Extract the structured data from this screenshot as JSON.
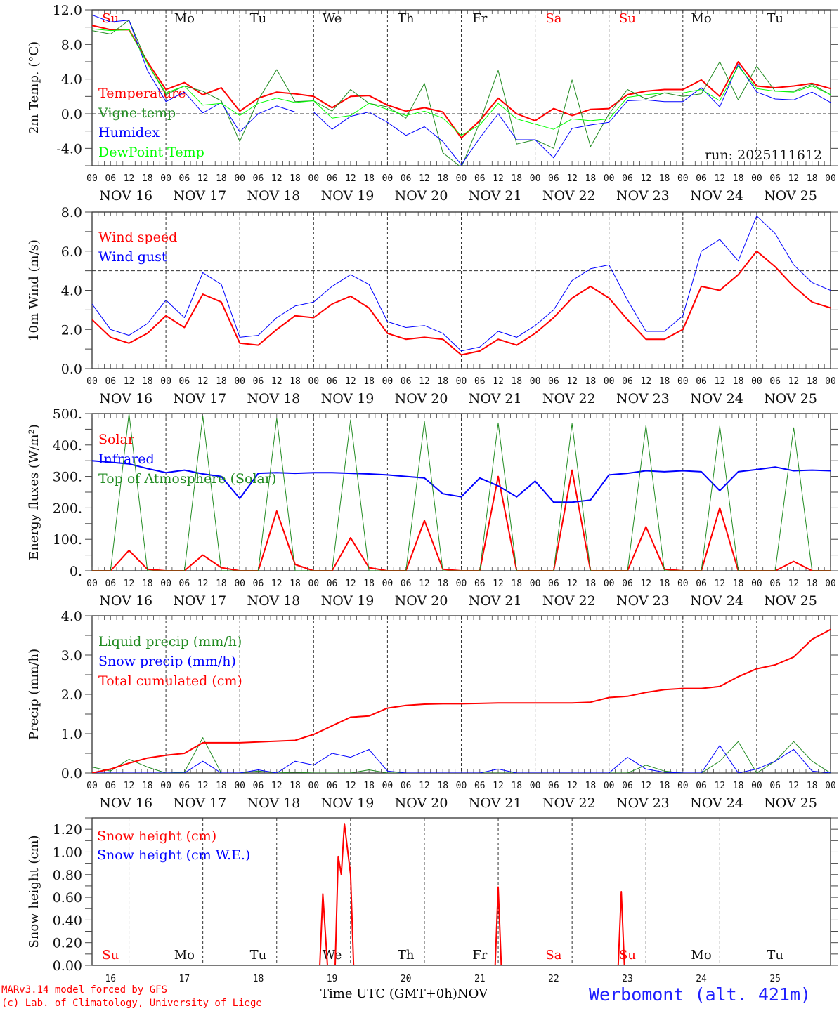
{
  "location": "Werbomont (alt. 421m)",
  "credits": [
    "MARv3.14 model forced by GFS",
    "(c) Lab. of Climatology, University of Liege"
  ],
  "xaxis_title": "Time UTC (GMT+0h)",
  "xaxis_month": "NOV",
  "colors": {
    "red": "#ff0000",
    "darkgreen": "#228b22",
    "blue": "#0000ff",
    "lime": "#00ff00",
    "title_blue": "#2020ff",
    "weekend": "#ff0000"
  },
  "days": [
    {
      "dow": "Su",
      "date": "NOV 16",
      "num": "16",
      "weekend": true
    },
    {
      "dow": "Mo",
      "date": "NOV 17",
      "num": "17",
      "weekend": false
    },
    {
      "dow": "Tu",
      "date": "NOV 18",
      "num": "18",
      "weekend": false
    },
    {
      "dow": "We",
      "date": "NOV 19",
      "num": "19",
      "weekend": false
    },
    {
      "dow": "Th",
      "date": "NOV 20",
      "num": "20",
      "weekend": false
    },
    {
      "dow": "Fr",
      "date": "NOV 21",
      "num": "21",
      "weekend": false
    },
    {
      "dow": "Sa",
      "date": "NOV 22",
      "num": "22",
      "weekend": true
    },
    {
      "dow": "Su",
      "date": "NOV 23",
      "num": "23",
      "weekend": true
    },
    {
      "dow": "Mo",
      "date": "NOV 24",
      "num": "24",
      "weekend": false
    },
    {
      "dow": "Tu",
      "date": "NOV 25",
      "num": "25",
      "weekend": false
    }
  ],
  "hour_ticks": [
    "00",
    "06",
    "12",
    "18"
  ],
  "end_tick": "00",
  "chart_data": [
    {
      "type": "line",
      "id": "temp",
      "ylabel": "2m Temp. (°C)",
      "ylim": [
        -6,
        12
      ],
      "yticks": [
        {
          "v": 12,
          "l": "12.0"
        },
        {
          "v": 8,
          "l": "8.0"
        },
        {
          "v": 4,
          "l": "4.0"
        },
        {
          "v": 0,
          "l": "0.0"
        },
        {
          "v": -4,
          "l": "-4.0"
        }
      ],
      "ref_line": 0,
      "annotation": "run: 2025111612",
      "x_hours_step": 6,
      "series": [
        {
          "name": "Temperature",
          "color": "red",
          "width": 2,
          "values": [
            10.2,
            9.7,
            9.7,
            6.0,
            2.8,
            3.6,
            2.2,
            3.0,
            0.3,
            1.8,
            2.5,
            2.3,
            2.0,
            0.7,
            2.0,
            2.1,
            1.0,
            0.3,
            0.7,
            0.2,
            -2.8,
            -0.8,
            1.8,
            0.0,
            -0.8,
            0.6,
            -0.2,
            0.5,
            0.6,
            2.2,
            2.6,
            2.8,
            2.8,
            3.9,
            2.0,
            6.0,
            3.2,
            3.0,
            3.2,
            3.5,
            2.9
          ]
        },
        {
          "name": "Vigne temp",
          "color": "darkgreen",
          "width": 1,
          "values": [
            9.6,
            9.2,
            10.8,
            5.8,
            2.2,
            3.2,
            2.6,
            1.5,
            -3.2,
            1.6,
            5.1,
            1.4,
            1.5,
            0.3,
            2.8,
            1.2,
            0.8,
            -0.5,
            3.5,
            -4.5,
            -6.2,
            -1.0,
            5.0,
            -3.5,
            -3.0,
            -4.0,
            3.9,
            -3.8,
            0.0,
            2.8,
            1.7,
            2.4,
            2.0,
            2.3,
            6.0,
            1.6,
            5.5,
            2.6,
            2.6,
            3.4,
            2.2
          ]
        },
        {
          "name": "Humidex",
          "color": "blue",
          "width": 1,
          "values": [
            11.4,
            10.6,
            10.8,
            5.0,
            1.4,
            2.5,
            0.1,
            1.3,
            -2.1,
            0.0,
            0.9,
            0.2,
            0.2,
            -1.8,
            -0.3,
            0.2,
            -1.0,
            -2.5,
            -1.5,
            -3.2,
            -5.9,
            -2.8,
            0.0,
            -3.0,
            -3.0,
            -5.1,
            -1.7,
            -1.3,
            -1.0,
            1.5,
            1.6,
            1.4,
            1.4,
            3.0,
            0.8,
            5.7,
            2.5,
            1.7,
            1.6,
            2.5,
            1.3
          ]
        },
        {
          "name": "DewPoint Temp",
          "color": "lime",
          "width": 1,
          "values": [
            9.8,
            9.6,
            9.7,
            5.8,
            2.4,
            3.2,
            1.0,
            1.2,
            -0.2,
            1.2,
            1.8,
            1.3,
            1.5,
            -0.5,
            -0.2,
            1.2,
            0.5,
            -0.2,
            0.3,
            -0.5,
            -2.5,
            -1.3,
            1.2,
            -0.6,
            -1.2,
            -1.8,
            -0.6,
            -0.8,
            -0.6,
            1.9,
            2.2,
            2.4,
            2.4,
            2.8,
            1.5,
            5.5,
            2.9,
            2.6,
            2.5,
            3.2,
            2.2
          ]
        }
      ]
    },
    {
      "type": "line",
      "id": "wind",
      "ylabel": "10m Wind (m/s)",
      "ylim": [
        0,
        8
      ],
      "yticks": [
        {
          "v": 8,
          "l": "8.0"
        },
        {
          "v": 6,
          "l": "6.0"
        },
        {
          "v": 4,
          "l": "4.0"
        },
        {
          "v": 2,
          "l": "2.0"
        },
        {
          "v": 0,
          "l": "0.0"
        }
      ],
      "ref_line": 5,
      "x_hours_step": 6,
      "series": [
        {
          "name": "Wind speed",
          "color": "red",
          "width": 2,
          "values": [
            2.5,
            1.6,
            1.3,
            1.8,
            2.7,
            2.1,
            3.8,
            3.4,
            1.3,
            1.2,
            2.0,
            2.7,
            2.6,
            3.3,
            3.7,
            3.1,
            1.8,
            1.5,
            1.6,
            1.5,
            0.7,
            0.9,
            1.5,
            1.2,
            1.8,
            2.6,
            3.6,
            4.2,
            3.6,
            2.5,
            1.5,
            1.5,
            2.0,
            4.2,
            4.0,
            4.8,
            6.0,
            5.2,
            4.2,
            3.4,
            3.1
          ]
        },
        {
          "name": "Wind gust",
          "color": "blue",
          "width": 1,
          "values": [
            3.3,
            2.0,
            1.7,
            2.3,
            3.5,
            2.6,
            4.9,
            4.3,
            1.6,
            1.7,
            2.6,
            3.2,
            3.4,
            4.2,
            4.8,
            4.3,
            2.4,
            2.1,
            2.2,
            1.8,
            0.9,
            1.1,
            1.9,
            1.6,
            2.2,
            3.0,
            4.5,
            5.1,
            5.3,
            3.5,
            1.9,
            1.9,
            2.7,
            6.0,
            6.6,
            5.5,
            7.8,
            6.9,
            5.3,
            4.4,
            4.0
          ]
        }
      ]
    },
    {
      "type": "line",
      "id": "energy",
      "ylabel": "Energy fluxes (W/m²)",
      "ylim": [
        0,
        500
      ],
      "yticks": [
        {
          "v": 500,
          "l": "500."
        },
        {
          "v": 400,
          "l": "400."
        },
        {
          "v": 300,
          "l": "300."
        },
        {
          "v": 200,
          "l": "200."
        },
        {
          "v": 100,
          "l": "100."
        },
        {
          "v": 0,
          "l": "0."
        }
      ],
      "x_hours_step": 6,
      "series": [
        {
          "name": "Solar",
          "color": "red",
          "width": 2,
          "values": [
            0,
            0,
            65,
            5,
            0,
            0,
            50,
            10,
            0,
            0,
            190,
            20,
            0,
            0,
            105,
            10,
            0,
            0,
            160,
            5,
            0,
            0,
            300,
            0,
            0,
            0,
            320,
            0,
            0,
            0,
            140,
            5,
            0,
            0,
            200,
            0,
            0,
            0,
            30,
            0,
            0
          ]
        },
        {
          "name": "Infrared",
          "color": "blue",
          "width": 2,
          "values": [
            350,
            345,
            340,
            325,
            312,
            320,
            308,
            300,
            230,
            310,
            312,
            310,
            312,
            312,
            310,
            308,
            305,
            300,
            295,
            245,
            235,
            295,
            270,
            235,
            285,
            218,
            218,
            225,
            305,
            310,
            318,
            315,
            318,
            315,
            255,
            315,
            322,
            330,
            318,
            320,
            318
          ]
        },
        {
          "name": "Top of Atmosphere (Solar)",
          "color": "darkgreen",
          "width": 1,
          "values": [
            0,
            0,
            500,
            0,
            0,
            0,
            492,
            0,
            0,
            0,
            485,
            0,
            0,
            0,
            480,
            0,
            0,
            0,
            475,
            0,
            0,
            0,
            470,
            0,
            0,
            0,
            468,
            0,
            0,
            0,
            462,
            0,
            0,
            0,
            460,
            0,
            0,
            0,
            455,
            0,
            0
          ]
        }
      ]
    },
    {
      "type": "line",
      "id": "precip",
      "ylabel": "Precip (mm/h)",
      "ylim": [
        0,
        4
      ],
      "yticks": [
        {
          "v": 4,
          "l": "4.0"
        },
        {
          "v": 3,
          "l": "3.0"
        },
        {
          "v": 2,
          "l": "2.0"
        },
        {
          "v": 1,
          "l": "1.0"
        },
        {
          "v": 0,
          "l": "0.0"
        }
      ],
      "x_hours_step": 6,
      "series": [
        {
          "name": "Liquid precip (mm/h)",
          "color": "darkgreen",
          "width": 1,
          "values": [
            0.15,
            0.05,
            0.35,
            0.15,
            0.0,
            0.02,
            0.9,
            0.0,
            0.0,
            0.05,
            0.0,
            0.02,
            0.0,
            0.0,
            0.0,
            0.08,
            0.0,
            0.0,
            0.0,
            0.0,
            0.0,
            0.0,
            0.0,
            0.0,
            0.0,
            0.0,
            0.0,
            0.0,
            0.0,
            0.0,
            0.2,
            0.05,
            0.0,
            0.0,
            0.3,
            0.8,
            0.0,
            0.3,
            0.8,
            0.3,
            0.0
          ]
        },
        {
          "name": "Snow precip (mm/h)",
          "color": "blue",
          "width": 1,
          "values": [
            0.0,
            0.0,
            0.0,
            0.0,
            0.0,
            0.0,
            0.3,
            0.0,
            0.0,
            0.08,
            0.0,
            0.3,
            0.2,
            0.5,
            0.4,
            0.6,
            0.05,
            0.0,
            0.0,
            0.0,
            0.0,
            0.0,
            0.1,
            0.0,
            0.0,
            0.0,
            0.0,
            0.0,
            0.0,
            0.4,
            0.1,
            0.02,
            0.0,
            0.0,
            0.7,
            0.0,
            0.1,
            0.3,
            0.6,
            0.05,
            0.0
          ]
        },
        {
          "name": "Total cumulated (cm)",
          "color": "red",
          "width": 2,
          "values": [
            0.0,
            0.1,
            0.25,
            0.38,
            0.45,
            0.5,
            0.77,
            0.77,
            0.77,
            0.79,
            0.81,
            0.83,
            0.98,
            1.2,
            1.42,
            1.45,
            1.65,
            1.72,
            1.75,
            1.76,
            1.76,
            1.77,
            1.78,
            1.78,
            1.78,
            1.78,
            1.78,
            1.8,
            1.92,
            1.95,
            2.05,
            2.12,
            2.15,
            2.15,
            2.2,
            2.45,
            2.65,
            2.75,
            2.95,
            3.4,
            3.65
          ]
        }
      ]
    },
    {
      "type": "line",
      "id": "snow",
      "ylabel": "Snow height (cm)",
      "ylim": [
        0,
        1.3
      ],
      "yticks": [
        {
          "v": 1.2,
          "l": "1.20"
        },
        {
          "v": 1.0,
          "l": "1.00"
        },
        {
          "v": 0.8,
          "l": "0.80"
        },
        {
          "v": 0.6,
          "l": "0.60"
        },
        {
          "v": 0.4,
          "l": "0.40"
        },
        {
          "v": 0.2,
          "l": "0.20"
        },
        {
          "v": 0,
          "l": "0.00"
        }
      ],
      "x_hours_step": 3,
      "series": [
        {
          "name": "Snow height (cm)",
          "color": "red",
          "width": 2,
          "points": [
            [
              72,
              0
            ],
            [
              74,
              0
            ],
            [
              75,
              0.63
            ],
            [
              76.5,
              0
            ],
            [
              79,
              0
            ],
            [
              80,
              0.96
            ],
            [
              81,
              0.8
            ],
            [
              82,
              1.25
            ],
            [
              84,
              0.8
            ],
            [
              85,
              0
            ],
            [
              131,
              0
            ],
            [
              132,
              0.69
            ],
            [
              133,
              0
            ],
            [
              171,
              0
            ],
            [
              172,
              0.65
            ],
            [
              173,
              0
            ]
          ]
        },
        {
          "name": "Snow height (cm W.E.)",
          "color": "blue",
          "width": 1,
          "points": []
        }
      ]
    }
  ]
}
